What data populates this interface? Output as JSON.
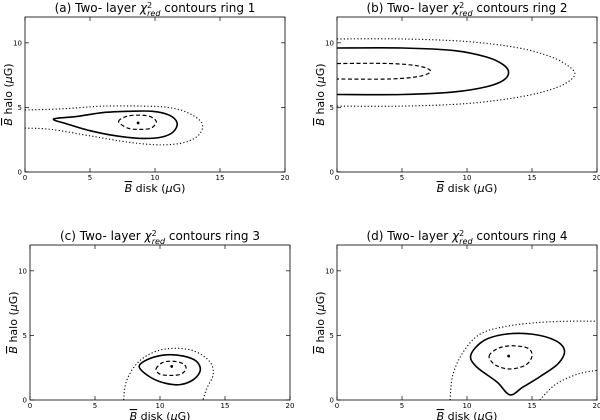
{
  "chart_data": [
    {
      "type": "contour",
      "title_prefix": "(a) Two- layer ",
      "title_suffix": " contours ring 1",
      "chi_symbol": "χ",
      "chi_sup": "2",
      "chi_sub": "red",
      "xlabel_sym": "B",
      "xlabel_rest": " disk (",
      "xlabel_mu": "μ",
      "xlabel_unit": "G)",
      "ylabel_sym": "B",
      "ylabel_rest": " halo (",
      "ylabel_mu": "μ",
      "ylabel_unit": "G)",
      "xlim": [
        0,
        20
      ],
      "ylim": [
        0,
        12
      ],
      "xticks": [
        "0",
        "5",
        "10",
        "15",
        "20"
      ],
      "yticks": [
        "0",
        "5",
        "10"
      ],
      "best_fit": [
        8.7,
        3.8
      ],
      "contours": [
        {
          "style": "dotted",
          "points": [
            [
              0,
              4.8
            ],
            [
              3,
              4.9
            ],
            [
              6,
              5.1
            ],
            [
              9,
              5.1
            ],
            [
              11,
              5.0
            ],
            [
              12.5,
              4.6
            ],
            [
              13.6,
              3.8
            ],
            [
              13.4,
              2.9
            ],
            [
              12.3,
              2.3
            ],
            [
              10.5,
              2.1
            ],
            [
              8,
              2.3
            ],
            [
              5,
              2.8
            ],
            [
              2,
              3.3
            ],
            [
              0,
              3.4
            ]
          ],
          "closed": false
        },
        {
          "style": "solid",
          "points": [
            [
              2.2,
              4.1
            ],
            [
              4,
              4.3
            ],
            [
              6,
              4.6
            ],
            [
              8,
              4.7
            ],
            [
              9.8,
              4.7
            ],
            [
              11.1,
              4.4
            ],
            [
              11.7,
              3.8
            ],
            [
              11.4,
              3.1
            ],
            [
              10.5,
              2.7
            ],
            [
              9,
              2.6
            ],
            [
              7,
              2.8
            ],
            [
              5,
              3.2
            ],
            [
              3.3,
              3.7
            ]
          ],
          "closed": true
        },
        {
          "style": "dashed",
          "points": [
            [
              7.2,
              3.9
            ],
            [
              7.8,
              4.3
            ],
            [
              8.7,
              4.4
            ],
            [
              9.6,
              4.3
            ],
            [
              10.1,
              3.9
            ],
            [
              9.7,
              3.4
            ],
            [
              8.8,
              3.3
            ],
            [
              7.9,
              3.4
            ]
          ],
          "closed": true
        }
      ]
    },
    {
      "type": "contour",
      "title_prefix": "(b) Two- layer ",
      "title_suffix": " contours ring 2",
      "chi_symbol": "χ",
      "chi_sup": "2",
      "chi_sub": "red",
      "xlabel_sym": "B",
      "xlabel_rest": " disk (",
      "xlabel_mu": "μ",
      "xlabel_unit": "G)",
      "ylabel_sym": "B",
      "ylabel_rest": " halo (",
      "ylabel_mu": "μ",
      "ylabel_unit": "G)",
      "xlim": [
        0,
        20
      ],
      "ylim": [
        0,
        12
      ],
      "xticks": [
        "0",
        "5",
        "10",
        "15",
        "20"
      ],
      "yticks": [
        "0",
        "5",
        "10"
      ],
      "best_fit": null,
      "contours": [
        {
          "style": "dotted",
          "points": [
            [
              0,
              10.3
            ],
            [
              5,
              10.3
            ],
            [
              10,
              10.1
            ],
            [
              14,
              9.6
            ],
            [
              16.5,
              8.9
            ],
            [
              17.8,
              8.2
            ],
            [
              18.3,
              7.6
            ],
            [
              17.8,
              7.0
            ],
            [
              16.5,
              6.4
            ],
            [
              14,
              5.8
            ],
            [
              10,
              5.3
            ],
            [
              5,
              5.1
            ],
            [
              0,
              5.1
            ]
          ],
          "closed": false
        },
        {
          "style": "solid",
          "points": [
            [
              0,
              9.6
            ],
            [
              5,
              9.6
            ],
            [
              9,
              9.4
            ],
            [
              11.5,
              8.9
            ],
            [
              12.8,
              8.3
            ],
            [
              13.2,
              7.7
            ],
            [
              12.8,
              7.1
            ],
            [
              11.5,
              6.6
            ],
            [
              9,
              6.2
            ],
            [
              5,
              6.0
            ],
            [
              0,
              6.0
            ]
          ],
          "closed": false
        },
        {
          "style": "dashed",
          "points": [
            [
              0,
              8.4
            ],
            [
              4,
              8.4
            ],
            [
              6.3,
              8.2
            ],
            [
              7.2,
              7.8
            ],
            [
              6.3,
              7.4
            ],
            [
              4,
              7.2
            ],
            [
              0,
              7.2
            ]
          ],
          "closed": false
        }
      ]
    },
    {
      "type": "contour",
      "title_prefix": "(c) Two- layer ",
      "title_suffix": " contours ring 3",
      "chi_symbol": "χ",
      "chi_sup": "2",
      "chi_sub": "red",
      "xlabel_sym": "B",
      "xlabel_rest": " disk (",
      "xlabel_mu": "μ",
      "xlabel_unit": "G)",
      "ylabel_sym": "B",
      "ylabel_rest": " halo (",
      "ylabel_mu": "μ",
      "ylabel_unit": "G)",
      "xlim": [
        0,
        20
      ],
      "ylim": [
        0,
        12
      ],
      "xticks": [
        "0",
        "5",
        "10",
        "15",
        "20"
      ],
      "yticks": [
        "0",
        "5",
        "10"
      ],
      "best_fit": [
        10.9,
        2.6
      ],
      "contours": [
        {
          "style": "dotted",
          "points": [
            [
              7.2,
              0
            ],
            [
              7.4,
              1.4
            ],
            [
              8.2,
              2.8
            ],
            [
              9.5,
              3.7
            ],
            [
              11,
              4.0
            ],
            [
              12.6,
              3.8
            ],
            [
              13.8,
              3.0
            ],
            [
              14.1,
              2.0
            ],
            [
              13.6,
              0.9
            ],
            [
              13.3,
              0
            ]
          ],
          "closed": false
        },
        {
          "style": "solid",
          "points": [
            [
              8.4,
              2.6
            ],
            [
              9.2,
              3.2
            ],
            [
              10.5,
              3.5
            ],
            [
              11.8,
              3.4
            ],
            [
              12.8,
              3.0
            ],
            [
              13.1,
              2.3
            ],
            [
              12.6,
              1.6
            ],
            [
              11.6,
              1.2
            ],
            [
              10.4,
              1.3
            ],
            [
              9.2,
              1.8
            ]
          ],
          "closed": true
        },
        {
          "style": "dashed",
          "points": [
            [
              9.7,
              2.4
            ],
            [
              10.2,
              2.9
            ],
            [
              11,
              3.0
            ],
            [
              11.8,
              2.8
            ],
            [
              12,
              2.4
            ],
            [
              11.6,
              2.0
            ],
            [
              10.8,
              1.9
            ],
            [
              10,
              2.0
            ]
          ],
          "closed": true
        }
      ]
    },
    {
      "type": "contour",
      "title_prefix": "(d) Two- layer ",
      "title_suffix": " contours ring 4",
      "chi_symbol": "χ",
      "chi_sup": "2",
      "chi_sub": "red",
      "xlabel_sym": "B",
      "xlabel_rest": " disk (",
      "xlabel_mu": "μ",
      "xlabel_unit": "G)",
      "ylabel_sym": "B",
      "ylabel_rest": " halo (",
      "ylabel_mu": "μ",
      "ylabel_unit": "G)",
      "xlim": [
        0,
        20
      ],
      "ylim": [
        0,
        12
      ],
      "xticks": [
        "0",
        "5",
        "10",
        "15",
        "20"
      ],
      "yticks": [
        "0",
        "5",
        "10"
      ],
      "best_fit": [
        13.2,
        3.4
      ],
      "contours": [
        {
          "style": "dotted",
          "points": [
            [
              8.7,
              0
            ],
            [
              8.9,
              1.9
            ],
            [
              9.7,
              3.7
            ],
            [
              11,
              5.1
            ],
            [
              13,
              5.7
            ],
            [
              15.5,
              6.0
            ],
            [
              18,
              6.1
            ],
            [
              20,
              6.1
            ]
          ],
          "closed": false
        },
        {
          "style": "dotted",
          "points": [
            [
              15.6,
              0
            ],
            [
              16.8,
              1.2
            ],
            [
              18.5,
              2.0
            ],
            [
              20,
              2.3
            ]
          ],
          "closed": false
        },
        {
          "style": "solid",
          "points": [
            [
              10.3,
              3.5
            ],
            [
              11.3,
              4.6
            ],
            [
              13,
              5.1
            ],
            [
              15,
              5.1
            ],
            [
              16.8,
              4.6
            ],
            [
              17.5,
              3.8
            ],
            [
              17,
              2.8
            ],
            [
              15.6,
              1.8
            ],
            [
              14.3,
              1.0
            ],
            [
              13.3,
              0.4
            ],
            [
              12.3,
              1.4
            ],
            [
              10.7,
              2.6
            ]
          ],
          "closed": true
        },
        {
          "style": "dashed",
          "points": [
            [
              11.7,
              3.4
            ],
            [
              12.4,
              4.0
            ],
            [
              13.5,
              4.2
            ],
            [
              14.7,
              4.0
            ],
            [
              15.0,
              3.4
            ],
            [
              14.5,
              2.7
            ],
            [
              13.3,
              2.4
            ],
            [
              12.2,
              2.7
            ]
          ],
          "closed": true
        }
      ]
    }
  ]
}
